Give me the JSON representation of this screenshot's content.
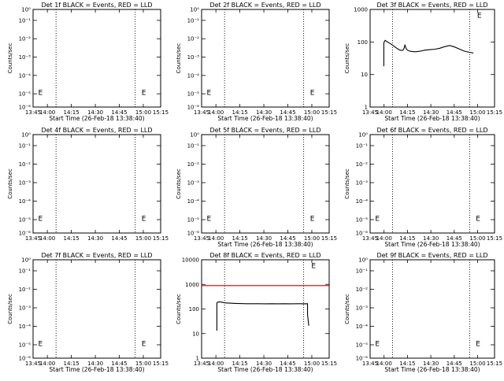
{
  "panels": [
    {
      "title": "Det 1f BLACK = Events, RED = LLD",
      "ylabel": "Counts/sec",
      "xlabel": "Start Time (26-Feb-18 13:38:40)",
      "yticks": [
        "10⁰",
        "10⁻¹",
        "10⁻²",
        "10⁻³",
        "10⁻⁴",
        "10⁻⁵",
        "10⁻⁶"
      ],
      "xticks": [
        "13:45",
        "14:00",
        "14:15",
        "14:30",
        "14:45",
        "15:00",
        "15:15"
      ],
      "marks": [
        "E",
        "E"
      ]
    },
    {
      "title": "Det 2f BLACK = Events, RED = LLD",
      "ylabel": "Counts/sec",
      "xlabel": "Start Time (26-Feb-18 13:38:40)",
      "yticks": [
        "10⁰",
        "10⁻¹",
        "10⁻²",
        "10⁻³",
        "10⁻⁴",
        "10⁻⁵",
        "10⁻⁶"
      ],
      "xticks": [
        "13:45",
        "14:00",
        "14:15",
        "14:30",
        "14:45",
        "15:00",
        "15:15"
      ],
      "marks": [
        "E",
        "E"
      ]
    },
    {
      "title": "Det 3f BLACK = Events, RED = LLD",
      "ylabel": "Counts/sec",
      "xlabel": "Start Time (26-Feb-18 13:38:40)",
      "yticks": [
        "1",
        "10",
        "100",
        "1000"
      ],
      "xticks": [
        "13:45",
        "14:00",
        "14:15",
        "14:30",
        "14:45",
        "15:00",
        "15:15"
      ],
      "marks": [
        "E"
      ]
    },
    {
      "title": "Det 4f BLACK = Events, RED = LLD",
      "ylabel": "Counts/sec",
      "xlabel": "",
      "yticks": [
        "10⁰",
        "10⁻¹",
        "10⁻²",
        "10⁻³",
        "10⁻⁴",
        "10⁻⁵",
        "10⁻⁶"
      ],
      "xticks": [
        "13:45",
        "14:00",
        "14:15",
        "14:30",
        "14:45",
        "15:00",
        "15:15"
      ],
      "marks": [
        "E",
        "E"
      ]
    },
    {
      "title": "Det 5f BLACK = Events, RED = LLD",
      "ylabel": "Counts/sec",
      "xlabel": "Start Time (26-Feb-18 13:38:40)",
      "yticks": [
        "10⁰",
        "10⁻¹",
        "10⁻²",
        "10⁻³",
        "10⁻⁴",
        "10⁻⁵",
        "10⁻⁶"
      ],
      "xticks": [
        "13:45",
        "14:00",
        "14:15",
        "14:30",
        "14:45",
        "15:00",
        "15:15"
      ],
      "marks": [
        "E",
        "E"
      ]
    },
    {
      "title": "Det 6f BLACK = Events, RED = LLD",
      "ylabel": "Counts/sec",
      "xlabel": "Start Time (26-Feb-18 13:38:40)",
      "yticks": [
        "10⁰",
        "10⁻¹",
        "10⁻²",
        "10⁻³",
        "10⁻⁴",
        "10⁻⁵",
        "10⁻⁶"
      ],
      "xticks": [
        "13:45",
        "14:00",
        "14:15",
        "14:30",
        "14:45",
        "15:00",
        "15:15"
      ],
      "marks": [
        "E",
        "E"
      ]
    },
    {
      "title": "Det 7f BLACK = Events, RED = LLD",
      "ylabel": "Counts/sec",
      "xlabel": "Start Time (26-Feb-18 13:38:40)",
      "yticks": [
        "10⁰",
        "10⁻¹",
        "10⁻²",
        "10⁻³",
        "10⁻⁴",
        "10⁻⁵",
        "10⁻⁶"
      ],
      "xticks": [
        "13:45",
        "14:00",
        "14:15",
        "14:30",
        "14:45",
        "15:00",
        "15:15"
      ],
      "marks": [
        "E",
        "E"
      ]
    },
    {
      "title": "Det 8f BLACK = Events, RED = LLD",
      "ylabel": "Counts/sec",
      "xlabel": "Start Time (26-Feb-18 13:38:40)",
      "yticks": [
        "1",
        "10",
        "100",
        "1000",
        "10000"
      ],
      "xticks": [
        "13:45",
        "14:00",
        "14:15",
        "14:30",
        "14:45",
        "15:00",
        "15:15"
      ],
      "marks": [
        "E"
      ]
    },
    {
      "title": "Det 9f BLACK = Events, RED = LLD",
      "ylabel": "Counts/sec",
      "xlabel": "Start Time (26-Feb-18 13:38:40)",
      "yticks": [
        "10⁰",
        "10⁻¹",
        "10⁻²",
        "10⁻³",
        "10⁻⁴",
        "10⁻⁵",
        "10⁻⁶"
      ],
      "xticks": [
        "13:45",
        "14:00",
        "14:15",
        "14:30",
        "14:45",
        "15:00",
        "15:15"
      ],
      "marks": [
        "E",
        "E"
      ]
    }
  ],
  "chart_data": [
    {
      "type": "line",
      "title": "Det 1f BLACK = Events, RED = LLD",
      "ylabel": "Counts/sec",
      "xlabel": "Start Time (26-Feb-18 13:38:40)",
      "ylog": true,
      "ylim": [
        1e-06,
        1
      ],
      "xlim": [
        "13:40",
        "15:20"
      ],
      "vlines": [
        "13:58",
        "15:00"
      ],
      "series": []
    },
    {
      "type": "line",
      "title": "Det 2f BLACK = Events, RED = LLD",
      "ylabel": "Counts/sec",
      "xlabel": "Start Time (26-Feb-18 13:38:40)",
      "ylog": true,
      "ylim": [
        1e-06,
        1
      ],
      "xlim": [
        "13:40",
        "15:20"
      ],
      "vlines": [
        "13:58",
        "15:00"
      ],
      "series": []
    },
    {
      "type": "line",
      "title": "Det 3f BLACK = Events, RED = LLD",
      "ylabel": "Counts/sec",
      "xlabel": "Start Time (26-Feb-18 13:38:40)",
      "ylog": true,
      "ylim": [
        1,
        1000
      ],
      "xlim": [
        "13:40",
        "15:20"
      ],
      "vlines": [
        "13:58",
        "15:00"
      ],
      "series": [
        {
          "color": "#000000",
          "x": [
            "13:51",
            "13:51",
            "13:52",
            "13:54",
            "13:56",
            "13:58",
            "14:00",
            "14:02",
            "14:04",
            "14:06",
            "14:07",
            "14:08",
            "14:09",
            "14:10",
            "14:12",
            "14:16",
            "14:20",
            "14:24",
            "14:28",
            "14:32",
            "14:36",
            "14:40",
            "14:44",
            "14:48",
            "14:52",
            "14:56",
            "15:00",
            "15:03"
          ],
          "y": [
            18,
            95,
            112,
            100,
            90,
            80,
            70,
            62,
            56,
            55,
            60,
            80,
            62,
            56,
            52,
            50,
            52,
            56,
            58,
            60,
            64,
            72,
            78,
            70,
            60,
            52,
            48,
            46
          ]
        }
      ]
    },
    {
      "type": "line",
      "title": "Det 4f BLACK = Events, RED = LLD",
      "ylabel": "Counts/sec",
      "xlabel": "",
      "ylog": true,
      "ylim": [
        1e-06,
        1
      ],
      "xlim": [
        "13:40",
        "15:20"
      ],
      "vlines": [
        "13:58",
        "15:00"
      ],
      "series": []
    },
    {
      "type": "line",
      "title": "Det 5f BLACK = Events, RED = LLD",
      "ylabel": "Counts/sec",
      "xlabel": "Start Time (26-Feb-18 13:38:40)",
      "ylog": true,
      "ylim": [
        1e-06,
        1
      ],
      "xlim": [
        "13:40",
        "15:20"
      ],
      "vlines": [
        "13:58",
        "15:00"
      ],
      "series": []
    },
    {
      "type": "line",
      "title": "Det 6f BLACK = Events, RED = LLD",
      "ylabel": "Counts/sec",
      "xlabel": "Start Time (26-Feb-18 13:38:40)",
      "ylog": true,
      "ylim": [
        1e-06,
        1
      ],
      "xlim": [
        "13:40",
        "15:20"
      ],
      "vlines": [
        "13:58",
        "15:00"
      ],
      "series": []
    },
    {
      "type": "line",
      "title": "Det 7f BLACK = Events, RED = LLD",
      "ylabel": "Counts/sec",
      "xlabel": "Start Time (26-Feb-18 13:38:40)",
      "ylog": true,
      "ylim": [
        1e-06,
        1
      ],
      "xlim": [
        "13:40",
        "15:20"
      ],
      "vlines": [
        "13:58",
        "15:00"
      ],
      "series": []
    },
    {
      "type": "line",
      "title": "Det 8f BLACK = Events, RED = LLD",
      "ylabel": "Counts/sec",
      "xlabel": "Start Time (26-Feb-18 13:38:40)",
      "ylog": true,
      "ylim": [
        1,
        30000
      ],
      "xlim": [
        "13:40",
        "15:20"
      ],
      "vlines": [
        "13:58",
        "15:00"
      ],
      "series": [
        {
          "color": "#000000",
          "x": [
            "13:52",
            "13:52",
            "13:53",
            "13:55",
            "13:58",
            "14:02",
            "14:06",
            "14:10",
            "14:15",
            "14:20",
            "14:25",
            "14:30",
            "14:35",
            "14:40",
            "14:45",
            "14:50",
            "14:55",
            "15:00",
            "15:03",
            "15:03",
            "15:04"
          ],
          "y": [
            18,
            330,
            360,
            360,
            330,
            320,
            310,
            305,
            300,
            300,
            300,
            298,
            300,
            298,
            300,
            298,
            300,
            298,
            300,
            100,
            30
          ]
        },
        {
          "color": "#cc0000",
          "x": [
            "13:40",
            "15:20"
          ],
          "y": [
            2000,
            2000
          ]
        }
      ]
    },
    {
      "type": "line",
      "title": "Det 9f BLACK = Events, RED = LLD",
      "ylabel": "Counts/sec",
      "xlabel": "Start Time (26-Feb-18 13:38:40)",
      "ylog": true,
      "ylim": [
        1e-06,
        1
      ],
      "xlim": [
        "13:40",
        "15:20"
      ],
      "vlines": [
        "13:58",
        "15:00"
      ],
      "series": []
    }
  ]
}
